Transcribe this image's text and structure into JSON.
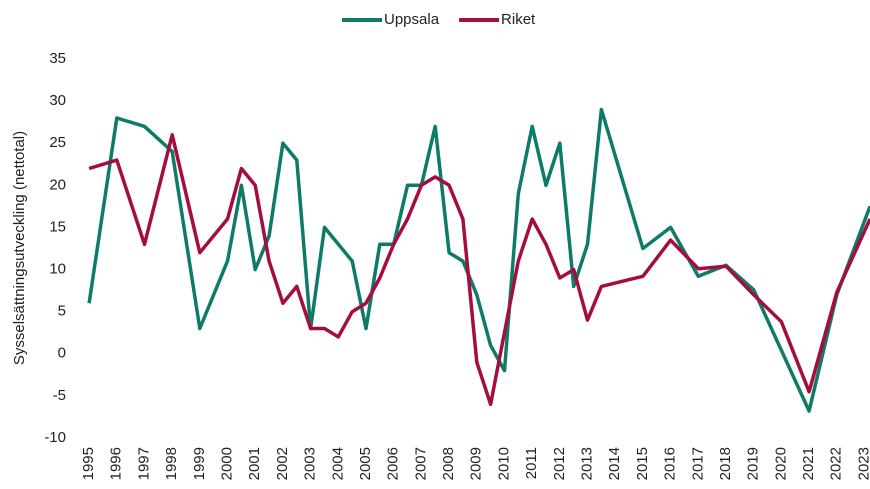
{
  "chart_data": {
    "type": "line",
    "y_label": "Sysselsättningsutveckling (nettotal)",
    "xlim": [
      1994.6,
      2023.2
    ],
    "xticks": [
      1995,
      1996,
      1997,
      1998,
      1999,
      2000,
      2001,
      2002,
      2003,
      2004,
      2005,
      2006,
      2007,
      2008,
      2009,
      2010,
      2011,
      2012,
      2013,
      2014,
      2015,
      2016,
      2017,
      2018,
      2019,
      2020,
      2021,
      2022,
      2023
    ],
    "ylim": [
      -10,
      35
    ],
    "yticks": [
      -10,
      -5,
      0,
      5,
      10,
      15,
      20,
      25,
      30,
      35
    ],
    "grid": false,
    "legend": "top",
    "series": [
      {
        "name": "Uppsala",
        "color": "#0e7a68",
        "x": [
          1995,
          1996,
          1997,
          1998,
          1999,
          2000,
          2000.5,
          2001,
          2001.5,
          2002,
          2002.5,
          2003,
          2003.5,
          2004.5,
          2005,
          2005.5,
          2006,
          2006.5,
          2007,
          2007.5,
          2008,
          2008.5,
          2009,
          2009.5,
          2010,
          2010.5,
          2011,
          2011.5,
          2012,
          2012.5,
          2013,
          2013.5,
          2015,
          2016,
          2017,
          2018,
          2019,
          2021,
          2022,
          2023.2
        ],
        "values": [
          6,
          28,
          27,
          24,
          3,
          11,
          20,
          10,
          14,
          25,
          23,
          3,
          15,
          11,
          3,
          13,
          13,
          20,
          20,
          27,
          12,
          11,
          7,
          1,
          -2,
          19,
          27,
          20,
          25,
          8,
          13,
          29,
          12.5,
          15,
          9.2,
          10.5,
          7.6,
          -6.8,
          7,
          17.5
        ]
      },
      {
        "name": "Riket",
        "color": "#a50d3f",
        "x": [
          1995,
          1996,
          1997,
          1998,
          1999,
          2000,
          2000.5,
          2001,
          2001.5,
          2002,
          2002.5,
          2003,
          2003.5,
          2004,
          2004.5,
          2005,
          2005.5,
          2006,
          2006.5,
          2007,
          2007.5,
          2008,
          2008.5,
          2009,
          2009.5,
          2010.5,
          2011,
          2011.5,
          2012,
          2012.5,
          2013,
          2013.5,
          2015,
          2016,
          2017,
          2018,
          2019,
          2020,
          2021,
          2022,
          2023.2
        ],
        "values": [
          22,
          23,
          13,
          26,
          12,
          16,
          22,
          20,
          11,
          6,
          8,
          3,
          3,
          2,
          5,
          6,
          9,
          13,
          16,
          20,
          21,
          20,
          16,
          -1,
          -6,
          11,
          16,
          13,
          9,
          10,
          4,
          8,
          9.2,
          13.5,
          10.1,
          10.4,
          7,
          3.8,
          -4.5,
          7.3,
          16
        ]
      }
    ]
  }
}
